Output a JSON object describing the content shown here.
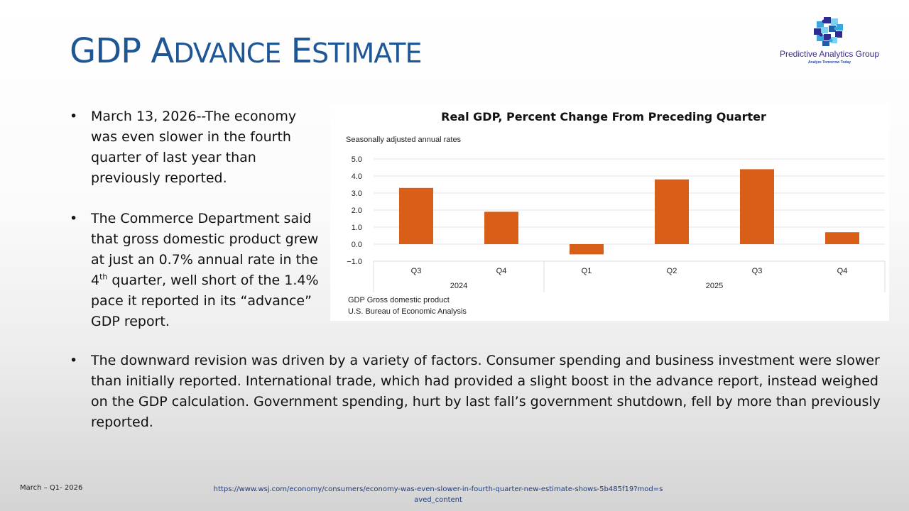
{
  "slide": {
    "title_lead": "GDP",
    "title_rest": [
      {
        "cap": "A",
        "small": "DVANCE"
      },
      {
        "cap": "E",
        "small": "STIMATE"
      }
    ]
  },
  "logo": {
    "name": "Predictive Analytics Group",
    "tagline": "Analyze Tomorrow Today",
    "icon": "puzzle-globe-icon",
    "colors": [
      "#2f2a8f",
      "#3aa7dc",
      "#7fd0f0",
      "#1f5ea8"
    ]
  },
  "bullets": [
    {
      "text": "March 13, 2026--The economy was even slower in the fourth quarter of last year than previously reported."
    },
    {
      "text_before": "The Commerce Department said that gross domestic product grew at just an 0.7% annual rate in the 4",
      "sup": "th",
      "text_after": " quarter, well short of the 1.4% pace it reported in its “advance” GDP report."
    },
    {
      "text": "The downward revision was driven by a variety of factors. Consumer spending and business investment were slower than initially reported. International trade, which had provided a slight boost in the advance report, instead weighed on the GDP calculation. Government spending, hurt by last fall’s government shutdown, fell by more than previously reported."
    }
  ],
  "chart_data": {
    "type": "bar",
    "title": "Real GDP, Percent Change From Preceding Quarter",
    "subtitle": "Seasonally adjusted annual rates",
    "xlabel": "",
    "ylabel": "",
    "categories": [
      "Q3",
      "Q4",
      "Q1",
      "Q2",
      "Q3",
      "Q4"
    ],
    "category_groups": [
      {
        "label": "2024",
        "count": 2
      },
      {
        "label": "2025",
        "count": 4
      }
    ],
    "values": [
      3.3,
      1.9,
      -0.6,
      3.8,
      4.4,
      0.7
    ],
    "ylim": [
      -1.0,
      5.0
    ],
    "yticks": [
      "5.0",
      "4.0",
      "3.0",
      "2.0",
      "1.0",
      "0.0",
      "−1.0"
    ],
    "ytick_values": [
      5,
      4,
      3,
      2,
      1,
      0,
      -1
    ],
    "grid": true,
    "bar_color": "#d95f18",
    "legend": "none",
    "notes": [
      "GDP Gross domestic product",
      "U.S. Bureau of Economic Analysis"
    ]
  },
  "footer": {
    "left": "March – Q1- 2026",
    "source_url": "https://www.wsj.com/economy/consumers/economy-was-even-slower-in-fourth-quarter-new-estimate-shows-5b485f19?mod=saved_content"
  },
  "colors": {
    "title": "#1f5796",
    "bar": "#d95f18",
    "link": "#1f3d7a"
  }
}
